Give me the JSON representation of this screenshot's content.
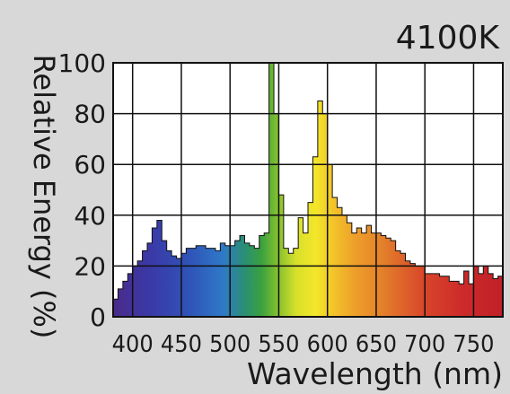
{
  "chart_data": {
    "type": "area",
    "title": "4100K",
    "xlabel": "Wavelength (nm)",
    "ylabel": "Relative Energy (%)",
    "xlim": [
      380,
      780
    ],
    "ylim": [
      0,
      100
    ],
    "x_ticks": [
      400,
      450,
      500,
      550,
      600,
      650,
      700,
      750
    ],
    "y_ticks": [
      0,
      20,
      40,
      60,
      80,
      100
    ],
    "grid": true,
    "fill": "visible spectrum color gradient",
    "series": [
      {
        "x": [
          380,
          385,
          390,
          395,
          400,
          405,
          410,
          415,
          420,
          425,
          430,
          435,
          440,
          445,
          450,
          455,
          460,
          465,
          470,
          475,
          480,
          485,
          490,
          495,
          500,
          505,
          510,
          515,
          520,
          525,
          530,
          535,
          540,
          545,
          550,
          555,
          560,
          565,
          570,
          575,
          580,
          585,
          590,
          595,
          600,
          605,
          610,
          615,
          620,
          625,
          630,
          635,
          640,
          645,
          650,
          655,
          660,
          665,
          670,
          675,
          680,
          685,
          690,
          695,
          700,
          705,
          710,
          715,
          720,
          725,
          730,
          735,
          740,
          745,
          750,
          755,
          760,
          765,
          770,
          775,
          780
        ],
        "values": [
          7,
          11,
          14,
          17,
          20,
          22,
          26,
          29,
          35,
          38,
          30,
          26,
          24,
          23,
          25,
          27,
          27,
          28,
          28,
          27,
          27,
          26,
          29,
          28,
          28,
          30,
          32,
          29,
          28,
          27,
          32,
          33,
          100,
          80,
          48,
          27,
          25,
          27,
          39,
          33,
          45,
          63,
          85,
          80,
          60,
          47,
          43,
          40,
          37,
          33,
          35,
          33,
          36,
          33,
          33,
          32,
          31,
          30,
          26,
          25,
          22,
          21,
          20,
          20,
          17,
          17,
          17,
          16,
          16,
          14,
          14,
          13,
          18,
          13,
          20,
          17,
          20,
          17,
          15,
          16,
          13
        ]
      }
    ]
  }
}
